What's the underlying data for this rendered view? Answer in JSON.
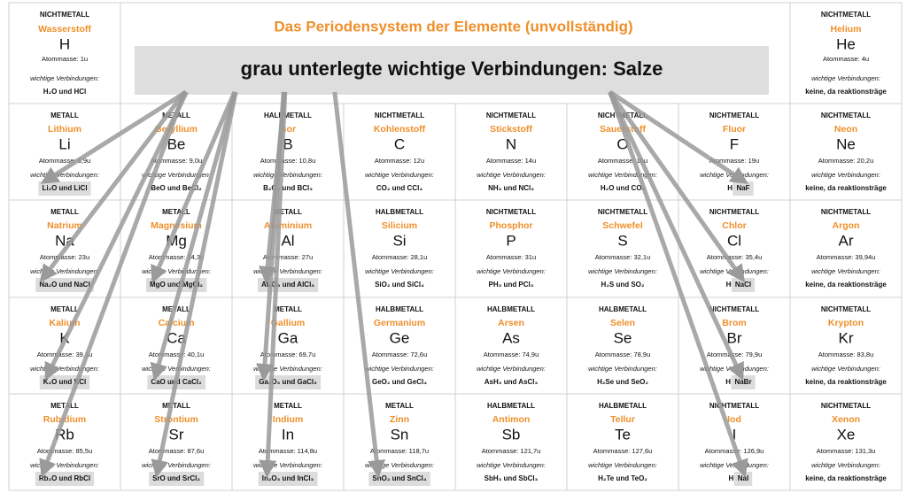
{
  "header": {
    "title": "Das Periodensystem der Elemente (unvollständig)",
    "banner": "grau unterlegte wichtige Verbindungen: Salze"
  },
  "cells": [
    {
      "category": "NICHTMETALL",
      "name": "Wasserstoff",
      "symbol": "H",
      "mass": "Atommasse: 1u",
      "label": "wichtige Verbindungen:",
      "compounds": "H₂O und HCl"
    },
    {
      "category": "NICHTMETALL",
      "name": "Helium",
      "symbol": "He",
      "mass": "Atommasse: 4u",
      "label": "wichtige Verbindungen:",
      "compounds": "keine, da reaktionsträge"
    },
    {
      "category": "METALL",
      "name": "Lithium",
      "symbol": "Li",
      "mass": "Atommasse: 6,9u",
      "label": "wichtige Verbindungen:",
      "salt": "Li₂O und LiCl"
    },
    {
      "category": "METALL",
      "name": "Beryllium",
      "symbol": "Be",
      "mass": "Atommasse: 9,0u",
      "label": "wichtige Verbindungen:",
      "compounds": "BeO und BeCl₂"
    },
    {
      "category": "HALBMETALL",
      "name": "Bor",
      "symbol": "B",
      "mass": "Atommasse: 10,8u",
      "label": "wichtige Verbindungen:",
      "compounds": "B₂O₃ und BCl₃"
    },
    {
      "category": "NICHTMETALL",
      "name": "Kohlenstoff",
      "symbol": "C",
      "mass": "Atommasse: 12u",
      "label": "wichtige Verbindungen:",
      "compounds": "CO₂ und CCl₄"
    },
    {
      "category": "NICHTMETALL",
      "name": "Stickstoff",
      "symbol": "N",
      "mass": "Atommasse: 14u",
      "label": "wichtige Verbindungen:",
      "compounds": "NH₃ und NCl₃"
    },
    {
      "category": "NICHTMETALL",
      "name": "Sauerstoff",
      "symbol": "O",
      "mass": "Atommasse: 16u",
      "label": "wichtige Verbindungen:",
      "compounds": "H₂O und CO₂"
    },
    {
      "category": "NICHTMETALL",
      "name": "Fluor",
      "symbol": "F",
      "mass": "Atommasse: 19u",
      "label": "wichtige Verbindungen:",
      "compounds": "HF und",
      "salt": "NaF"
    },
    {
      "category": "NICHTMETALL",
      "name": "Neon",
      "symbol": "Ne",
      "mass": "Atommasse: 20,2u",
      "label": "wichtige Verbindungen:",
      "compounds": "keine, da reaktionsträge"
    },
    {
      "category": "METALL",
      "name": "Natrium",
      "symbol": "Na",
      "mass": "Atommasse: 23u",
      "label": "wichtige Verbindungen:",
      "salt": "Na₂O und NaCl"
    },
    {
      "category": "METALL",
      "name": "Magnesium",
      "symbol": "Mg",
      "mass": "Atommasse: 24,3u",
      "label": "wichtige Verbindungen:",
      "salt": "MgO und MgCl₂"
    },
    {
      "category": "METALL",
      "name": "Aluminium",
      "symbol": "Al",
      "mass": "Atommasse: 27u",
      "label": "wichtige Verbindungen:",
      "salt": "Al₂O₃ und AlCl₃"
    },
    {
      "category": "HALBMETALL",
      "name": "Silicium",
      "symbol": "Si",
      "mass": "Atommasse: 28,1u",
      "label": "wichtige Verbindungen:",
      "compounds": "SiO₂ und SiCl₄"
    },
    {
      "category": "NICHTMETALL",
      "name": "Phosphor",
      "symbol": "P",
      "mass": "Atommasse: 31u",
      "label": "wichtige Verbindungen:",
      "compounds": "PH₃ und PCl₃"
    },
    {
      "category": "NICHTMETALL",
      "name": "Schwefel",
      "symbol": "S",
      "mass": "Atommasse: 32,1u",
      "label": "wichtige Verbindungen:",
      "compounds": "H₂S und SO₂"
    },
    {
      "category": "NICHTMETALL",
      "name": "Chlor",
      "symbol": "Cl",
      "mass": "Atommasse: 35,4u",
      "label": "wichtige Verbindungen:",
      "compounds": "HCl und",
      "salt": "NaCl"
    },
    {
      "category": "NICHTMETALL",
      "name": "Argon",
      "symbol": "Ar",
      "mass": "Atommasse: 39,94u",
      "label": "wichtige Verbindungen:",
      "compounds": "keine, da reaktionsträge"
    },
    {
      "category": "METALL",
      "name": "Kalium",
      "symbol": "K",
      "mass": "Atommasse: 39,1u",
      "label": "wichtige Verbindungen:",
      "salt": "K₂O und KCl"
    },
    {
      "category": "METALL",
      "name": "Calcium",
      "symbol": "Ca",
      "mass": "Atommasse: 40,1u",
      "label": "wichtige Verbindungen:",
      "salt": "CaO und CaCl₂"
    },
    {
      "category": "METALL",
      "name": "Gallium",
      "symbol": "Ga",
      "mass": "Atommasse: 69,7u",
      "label": "wichtige Verbindungen:",
      "salt": "Ga₂O₃ und GaCl₃"
    },
    {
      "category": "HALBMETALL",
      "name": "Germanium",
      "symbol": "Ge",
      "mass": "Atommasse: 72,6u",
      "label": "wichtige Verbindungen:",
      "compounds": "GeO₂ und GeCl₄"
    },
    {
      "category": "HALBMETALL",
      "name": "Arsen",
      "symbol": "As",
      "mass": "Atommasse: 74,9u",
      "label": "wichtige Verbindungen:",
      "compounds": "AsH₃ und AsCl₃"
    },
    {
      "category": "HALBMETALL",
      "name": "Selen",
      "symbol": "Se",
      "mass": "Atommasse: 78,9u",
      "label": "wichtige Verbindungen:",
      "compounds": "H₂Se und SeO₂"
    },
    {
      "category": "NICHTMETALL",
      "name": "Brom",
      "symbol": "Br",
      "mass": "Atommasse: 79,9u",
      "label": "wichtige Verbindungen:",
      "compounds": "HBr und",
      "salt": "NaBr"
    },
    {
      "category": "NICHTMETALL",
      "name": "Krypton",
      "symbol": "Kr",
      "mass": "Atommasse: 83,8u",
      "label": "wichtige Verbindungen:",
      "compounds": "keine, da reaktionsträge"
    },
    {
      "category": "METALL",
      "name": "Rubidium",
      "symbol": "Rb",
      "mass": "Atommasse: 85,5u",
      "label": "wichtige Verbindungen:",
      "salt": "Rb₂O und RbCl"
    },
    {
      "category": "METALL",
      "name": "Strontium",
      "symbol": "Sr",
      "mass": "Atommasse: 87,6u",
      "label": "wichtige Verbindungen:",
      "salt": "SrO und SrCl₂"
    },
    {
      "category": "METALL",
      "name": "Indium",
      "symbol": "In",
      "mass": "Atommasse: 114,8u",
      "label": "wichtige Verbindungen:",
      "salt": "In₂O₃ und InCl₃"
    },
    {
      "category": "METALL",
      "name": "Zinn",
      "symbol": "Sn",
      "mass": "Atommasse: 118,7u",
      "label": "wichtige Verbindungen:",
      "salt": "SnO₂ und SnCl₄"
    },
    {
      "category": "HALBMETALL",
      "name": "Antimon",
      "symbol": "Sb",
      "mass": "Atommasse: 121,7u",
      "label": "wichtige Verbindungen:",
      "compounds": "SbH₃ und SbCl₃"
    },
    {
      "category": "HALBMETALL",
      "name": "Tellur",
      "symbol": "Te",
      "mass": "Atommasse: 127,6u",
      "label": "wichtige Verbindungen:",
      "compounds": "H₂Te und TeO₂"
    },
    {
      "category": "NICHTMETALL",
      "name": "Iod",
      "symbol": "I",
      "mass": "Atommasse: 126,9u",
      "label": "wichtige Verbindungen:",
      "compounds": "HI und",
      "salt": "NaI"
    },
    {
      "category": "NICHTMETALL",
      "name": "Xenon",
      "symbol": "Xe",
      "mass": "Atommasse: 131,3u",
      "label": "wichtige Verbindungen:",
      "compounds": "keine, da reaktionsträge"
    }
  ]
}
